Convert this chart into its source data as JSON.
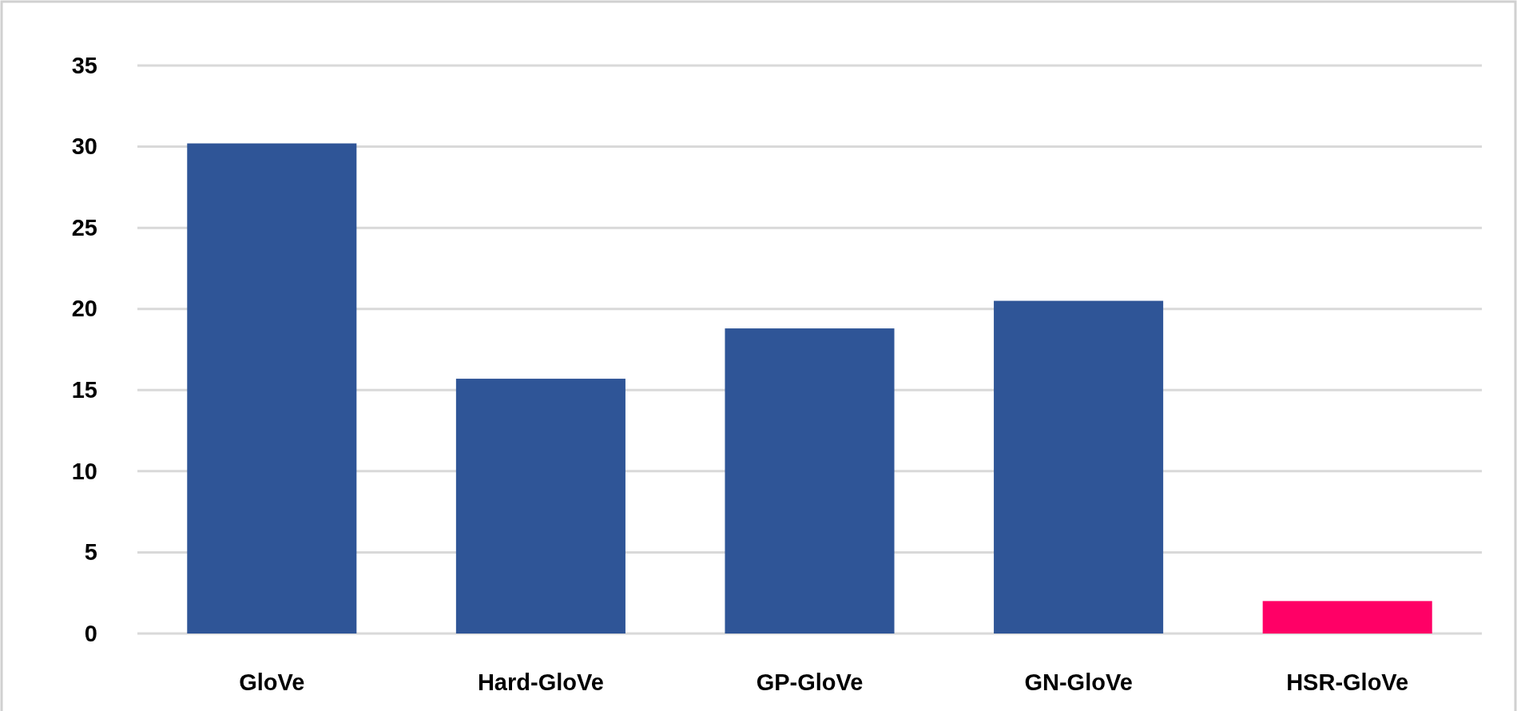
{
  "chart_data": {
    "type": "bar",
    "categories": [
      "GloVe",
      "Hard-GloVe",
      "GP-GloVe",
      "GN-GloVe",
      "HSR-GloVe"
    ],
    "values": [
      30.2,
      15.7,
      18.8,
      20.5,
      2.0
    ],
    "colors": [
      "#2f5597",
      "#2f5597",
      "#2f5597",
      "#2f5597",
      "#ff0066"
    ],
    "ylim": [
      0,
      35
    ],
    "yticks": [
      0,
      5,
      10,
      15,
      20,
      25,
      30,
      35
    ],
    "grid": "y"
  }
}
